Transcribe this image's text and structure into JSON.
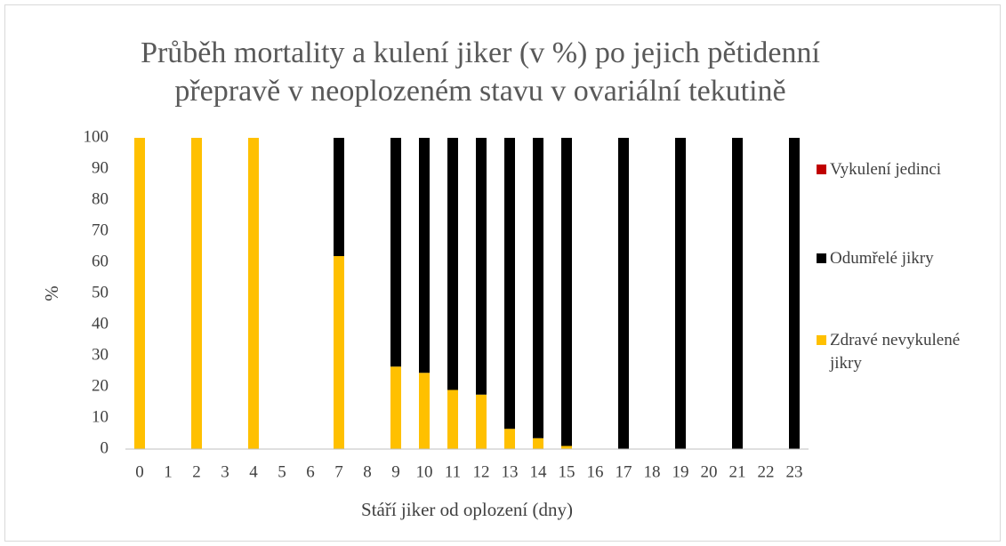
{
  "chart_data": {
    "type": "stacked_bar",
    "title": [
      "Průběh mortality a kulení jiker (v %) po jejich pětidenní",
      "přepravě v neoplozeném stavu v ovariální tekutině"
    ],
    "x_label": "Stáří jiker od oplození (dny)",
    "y_label": "%",
    "categories": [
      "0",
      "1",
      "2",
      "3",
      "4",
      "5",
      "6",
      "7",
      "8",
      "9",
      "10",
      "11",
      "12",
      "13",
      "14",
      "15",
      "16",
      "17",
      "18",
      "19",
      "20",
      "21",
      "22",
      "23"
    ],
    "series": [
      {
        "name": "Zdravé nevykulené jikry",
        "color": "#ffc000",
        "values": [
          100,
          null,
          100,
          null,
          100,
          null,
          null,
          62,
          null,
          26.5,
          24.5,
          19,
          17.5,
          6.5,
          3.5,
          1,
          null,
          0,
          null,
          0,
          null,
          0,
          null,
          0
        ]
      },
      {
        "name": "Odumřelé jikry",
        "color": "#000000",
        "values": [
          0,
          null,
          0,
          null,
          0,
          null,
          null,
          38,
          null,
          73.5,
          75.5,
          81,
          82.5,
          93.5,
          96.5,
          99,
          null,
          100,
          null,
          100,
          null,
          100,
          null,
          100
        ]
      },
      {
        "name": "Vykulení jedinci",
        "color": "#c00000",
        "values": [
          0,
          null,
          0,
          null,
          0,
          null,
          null,
          0,
          null,
          0,
          0,
          0,
          0,
          0,
          0,
          0,
          null,
          0,
          null,
          0,
          null,
          0,
          null,
          0
        ]
      }
    ],
    "ylim": [
      0,
      100
    ],
    "yticks": [
      0,
      10,
      20,
      30,
      40,
      50,
      60,
      70,
      80,
      90,
      100
    ],
    "grid": false,
    "legend": "right"
  }
}
